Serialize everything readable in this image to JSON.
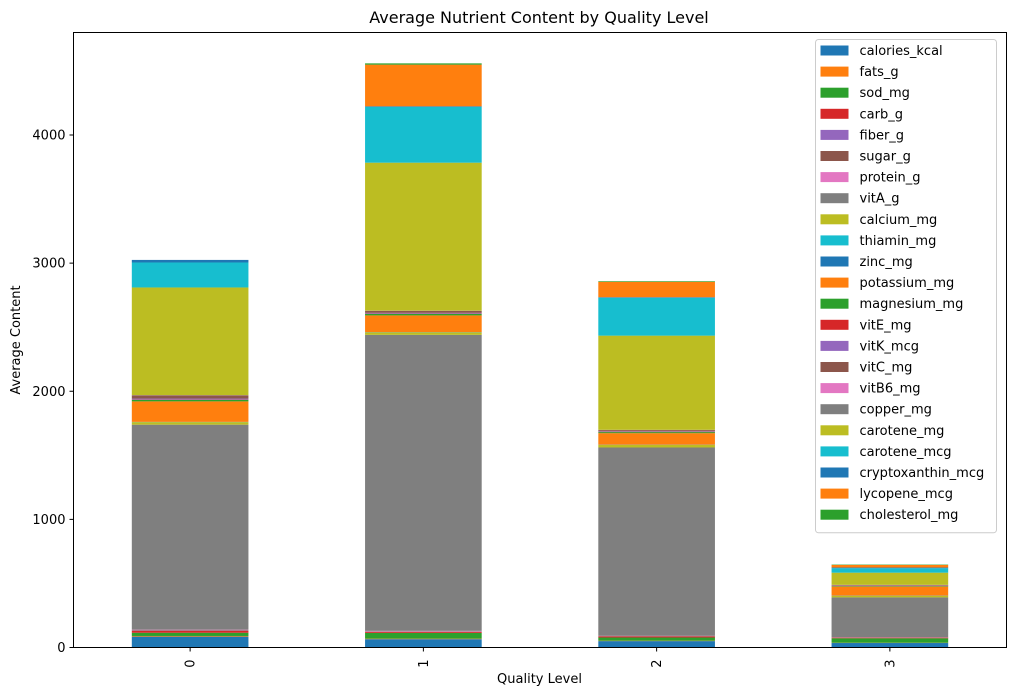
{
  "chart_data": {
    "type": "bar",
    "stacked": true,
    "title": "Average Nutrient Content by Quality Level",
    "xlabel": "Quality Level",
    "ylabel": "Average Content",
    "categories": [
      "0",
      "1",
      "2",
      "3"
    ],
    "ylim": [
      0,
      4800
    ],
    "yticks": [
      0,
      1000,
      2000,
      3000,
      4000
    ],
    "grid": false,
    "legend_position": "top-right",
    "series": [
      {
        "name": "calories_kcal",
        "color": "#1f77b4",
        "values": [
          85,
          65,
          50,
          35
        ]
      },
      {
        "name": "fats_g",
        "color": "#ff7f0e",
        "values": [
          5,
          4,
          3,
          2
        ]
      },
      {
        "name": "sod_mg",
        "color": "#2ca02c",
        "values": [
          25,
          45,
          25,
          35
        ]
      },
      {
        "name": "carb_g",
        "color": "#d62728",
        "values": [
          15,
          8,
          8,
          5
        ]
      },
      {
        "name": "fiber_g",
        "color": "#9467bd",
        "values": [
          2,
          2,
          1,
          1
        ]
      },
      {
        "name": "sugar_g",
        "color": "#8c564b",
        "values": [
          4,
          3,
          2,
          2
        ]
      },
      {
        "name": "protein_g",
        "color": "#e377c2",
        "values": [
          3,
          3,
          2,
          1
        ]
      },
      {
        "name": "vitA_g",
        "color": "#7f7f7f",
        "values": [
          1600,
          2310,
          1470,
          310
        ]
      },
      {
        "name": "calcium_mg",
        "color": "#bcbd22",
        "values": [
          20,
          20,
          20,
          12
        ]
      },
      {
        "name": "thiamin_mg",
        "color": "#17becf",
        "values": [
          1,
          1,
          1,
          1
        ]
      },
      {
        "name": "zinc_mg",
        "color": "#1f77b4",
        "values": [
          1,
          1,
          1,
          1
        ]
      },
      {
        "name": "potassium_mg",
        "color": "#ff7f0e",
        "values": [
          160,
          130,
          90,
          70
        ]
      },
      {
        "name": "magnesium_mg",
        "color": "#2ca02c",
        "values": [
          12,
          12,
          8,
          4
        ]
      },
      {
        "name": "vitE_mg",
        "color": "#d62728",
        "values": [
          2,
          2,
          2,
          1
        ]
      },
      {
        "name": "vitK_mcg",
        "color": "#9467bd",
        "values": [
          8,
          6,
          4,
          2
        ]
      },
      {
        "name": "vitC_mg",
        "color": "#8c564b",
        "values": [
          25,
          15,
          10,
          5
        ]
      },
      {
        "name": "vitB6_mg",
        "color": "#e377c2",
        "values": [
          1,
          1,
          1,
          1
        ]
      },
      {
        "name": "copper_mg",
        "color": "#7f7f7f",
        "values": [
          1,
          1,
          1,
          1
        ]
      },
      {
        "name": "carotene_mg",
        "color": "#bcbd22",
        "values": [
          840,
          1155,
          735,
          95
        ]
      },
      {
        "name": "carotene_mcg",
        "color": "#17becf",
        "values": [
          195,
          435,
          295,
          35
        ]
      },
      {
        "name": "cryptoxanthin_mcg",
        "color": "#1f77b4",
        "values": [
          20,
          5,
          5,
          5
        ]
      },
      {
        "name": "lycopene_mcg",
        "color": "#ff7f0e",
        "values": [
          0,
          325,
          120,
          20
        ]
      },
      {
        "name": "cholesterol_mg",
        "color": "#2ca02c",
        "values": [
          0,
          10,
          5,
          3
        ]
      }
    ]
  }
}
